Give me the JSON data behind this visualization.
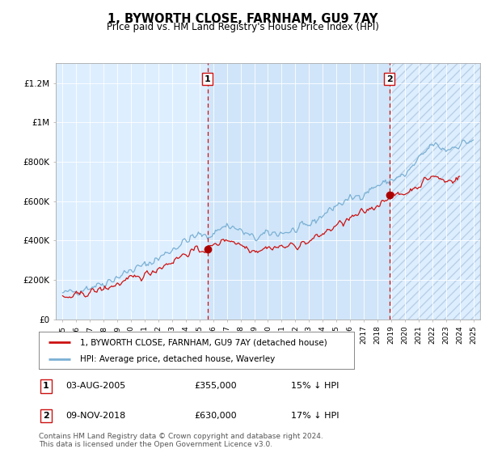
{
  "title": "1, BYWORTH CLOSE, FARNHAM, GU9 7AY",
  "subtitle": "Price paid vs. HM Land Registry's House Price Index (HPI)",
  "legend_line1": "1, BYWORTH CLOSE, FARNHAM, GU9 7AY (detached house)",
  "legend_line2": "HPI: Average price, detached house, Waverley",
  "sale1_label": "1",
  "sale1_date": "03-AUG-2005",
  "sale1_price": "£355,000",
  "sale1_hpi": "15% ↓ HPI",
  "sale1_year": 2005.58,
  "sale1_value": 355000,
  "sale2_label": "2",
  "sale2_date": "09-NOV-2018",
  "sale2_price": "£630,000",
  "sale2_hpi": "17% ↓ HPI",
  "sale2_year": 2018.86,
  "sale2_value": 630000,
  "footer": "Contains HM Land Registry data © Crown copyright and database right 2024.\nThis data is licensed under the Open Government Licence v3.0.",
  "plot_bg_color": "#ddeeff",
  "hpi_line_color": "#7ab0d4",
  "price_line_color": "#cc1111",
  "marker_color": "#aa0000",
  "vline_color": "#cc1111",
  "ylim": [
    0,
    1300000
  ],
  "yticks": [
    0,
    200000,
    400000,
    600000,
    800000,
    1000000,
    1200000
  ],
  "ytick_labels": [
    "£0",
    "£200K",
    "£400K",
    "£600K",
    "£800K",
    "£1M",
    "£1.2M"
  ],
  "xmin": 1994.5,
  "xmax": 2025.5
}
